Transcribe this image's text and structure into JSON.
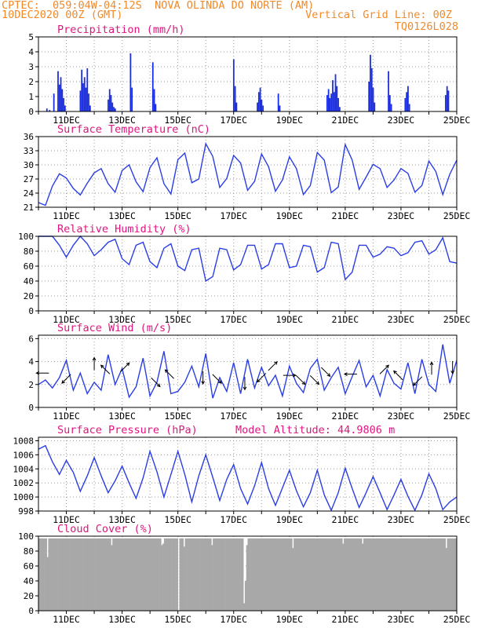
{
  "header": {
    "line1": "CPTEC:  059:04W-04:12S  NOVA OLINDA DO NORTE (AM)",
    "line2_left": "10DEC2020 00Z (GMT)",
    "line2_right": "Vertical Grid Line: 00Z",
    "line3_right": "TQ0126L028"
  },
  "colors": {
    "header": "#f08a2a",
    "panel_title": "#e0157f",
    "line": "#2a3ee6",
    "bar": "#1c2fe0",
    "cloud": "#a8a8a8",
    "grid": "#9a9a9a"
  },
  "x_tick_labels": [
    "11DEC",
    "13DEC",
    "15DEC",
    "17DEC",
    "19DEC",
    "21DEC",
    "23DEC",
    "25DEC"
  ],
  "chart_data": [
    {
      "type": "bar",
      "title": "Precipitation (mm/h)",
      "ylim": [
        0,
        5
      ],
      "yticks": [
        0,
        1,
        2,
        3,
        4,
        5
      ],
      "x_range_days": [
        0,
        15
      ],
      "x": [
        0.3,
        0.4,
        0.55,
        0.7,
        0.75,
        0.8,
        0.85,
        0.9,
        0.95,
        1.5,
        1.55,
        1.6,
        1.65,
        1.7,
        1.75,
        1.8,
        1.85,
        2.5,
        2.55,
        2.6,
        2.65,
        2.7,
        2.75,
        3.3,
        3.35,
        4.1,
        4.15,
        4.2,
        7.0,
        7.05,
        7.1,
        7.85,
        7.9,
        7.95,
        8.0,
        8.05,
        8.6,
        8.65,
        10.35,
        10.4,
        10.45,
        10.5,
        10.55,
        10.6,
        10.65,
        10.7,
        10.75,
        10.8,
        11.85,
        11.9,
        11.95,
        12.0,
        12.05,
        12.55,
        12.6,
        12.65,
        13.15,
        13.2,
        13.25,
        13.3,
        14.6,
        14.65,
        14.7
      ],
      "values": [
        0.2,
        0.1,
        1.2,
        2.7,
        1.8,
        2.3,
        1.5,
        0.9,
        0.4,
        1.4,
        2.8,
        1.9,
        2.3,
        1.6,
        2.9,
        1.2,
        0.4,
        0.8,
        1.5,
        1.1,
        0.6,
        0.3,
        0.2,
        3.9,
        1.6,
        3.3,
        1.5,
        0.5,
        3.5,
        1.7,
        0.6,
        0.6,
        1.3,
        1.6,
        0.8,
        0.4,
        1.2,
        0.4,
        1.1,
        1.5,
        0.9,
        1.2,
        2.1,
        1.3,
        2.5,
        1.7,
        0.9,
        0.3,
        2.0,
        3.8,
        2.9,
        1.6,
        0.6,
        2.7,
        1.1,
        0.5,
        0.9,
        1.3,
        1.7,
        0.5,
        1.1,
        1.7,
        1.4
      ]
    },
    {
      "type": "line",
      "title": "Surface Temperature (nC)",
      "ylim": [
        21,
        36
      ],
      "yticks": [
        21,
        24,
        27,
        30,
        33,
        36
      ],
      "x_range_days": [
        0,
        15
      ],
      "x": [
        0.0,
        0.25,
        0.5,
        0.75,
        1.0,
        1.25,
        1.5,
        1.75,
        2.0,
        2.25,
        2.5,
        2.75,
        3.0,
        3.25,
        3.5,
        3.75,
        4.0,
        4.25,
        4.5,
        4.75,
        5.0,
        5.25,
        5.5,
        5.75,
        6.0,
        6.25,
        6.5,
        6.75,
        7.0,
        7.25,
        7.5,
        7.75,
        8.0,
        8.25,
        8.5,
        8.75,
        9.0,
        9.25,
        9.5,
        9.75,
        10.0,
        10.25,
        10.5,
        10.75,
        11.0,
        11.25,
        11.5,
        11.75,
        12.0,
        12.25,
        12.5,
        12.75,
        13.0,
        13.25,
        13.5,
        13.75,
        14.0,
        14.25,
        14.5,
        14.75,
        15.0
      ],
      "values": [
        22.0,
        21.4,
        25.5,
        28.1,
        27.2,
        25.0,
        23.6,
        26.1,
        28.3,
        29.2,
        26.0,
        24.2,
        28.8,
        30.0,
        26.4,
        24.3,
        29.4,
        31.5,
        26.0,
        23.8,
        31.1,
        32.5,
        26.2,
        27.0,
        34.5,
        31.8,
        25.2,
        27.1,
        32.0,
        30.4,
        24.6,
        26.5,
        32.3,
        29.6,
        24.4,
        26.8,
        31.7,
        29.2,
        23.7,
        25.6,
        32.6,
        31.0,
        24.1,
        25.3,
        34.3,
        31.0,
        24.8,
        27.4,
        30.1,
        29.2,
        25.2,
        26.8,
        29.2,
        28.2,
        24.2,
        25.6,
        30.8,
        28.6,
        23.7,
        28.0,
        31.0
      ]
    },
    {
      "type": "line",
      "title": "Relative Humidity (%)",
      "ylim": [
        0,
        100
      ],
      "yticks": [
        0,
        20,
        40,
        60,
        80,
        100
      ],
      "x_range_days": [
        0,
        15
      ],
      "x": [
        0.0,
        0.25,
        0.5,
        0.75,
        1.0,
        1.25,
        1.5,
        1.75,
        2.0,
        2.25,
        2.5,
        2.75,
        3.0,
        3.25,
        3.5,
        3.75,
        4.0,
        4.25,
        4.5,
        4.75,
        5.0,
        5.25,
        5.5,
        5.75,
        6.0,
        6.25,
        6.5,
        6.75,
        7.0,
        7.25,
        7.5,
        7.75,
        8.0,
        8.25,
        8.5,
        8.75,
        9.0,
        9.25,
        9.5,
        9.75,
        10.0,
        10.25,
        10.5,
        10.75,
        11.0,
        11.25,
        11.5,
        11.75,
        12.0,
        12.25,
        12.5,
        12.75,
        13.0,
        13.25,
        13.5,
        13.75,
        14.0,
        14.25,
        14.5,
        14.75,
        15.0
      ],
      "values": [
        100,
        100,
        100,
        88,
        72,
        88,
        100,
        90,
        74,
        82,
        92,
        96,
        70,
        62,
        88,
        92,
        66,
        58,
        84,
        90,
        60,
        54,
        82,
        84,
        40,
        46,
        84,
        82,
        55,
        62,
        88,
        88,
        56,
        62,
        90,
        90,
        58,
        60,
        88,
        86,
        52,
        58,
        92,
        90,
        42,
        52,
        88,
        88,
        72,
        76,
        86,
        84,
        74,
        78,
        92,
        94,
        76,
        82,
        98,
        66,
        64
      ]
    },
    {
      "type": "line",
      "title": "Surface Wind (m/s)",
      "ylim": [
        0,
        6.3
      ],
      "yticks": [
        0,
        2,
        4,
        6
      ],
      "x_range_days": [
        0,
        15
      ],
      "x": [
        0.0,
        0.25,
        0.5,
        0.75,
        1.0,
        1.25,
        1.5,
        1.75,
        2.0,
        2.25,
        2.5,
        2.75,
        3.0,
        3.25,
        3.5,
        3.75,
        4.0,
        4.25,
        4.5,
        4.75,
        5.0,
        5.25,
        5.5,
        5.75,
        6.0,
        6.25,
        6.5,
        6.75,
        7.0,
        7.25,
        7.5,
        7.75,
        8.0,
        8.25,
        8.5,
        8.75,
        9.0,
        9.25,
        9.5,
        9.75,
        10.0,
        10.25,
        10.5,
        10.75,
        11.0,
        11.25,
        11.5,
        11.75,
        12.0,
        12.25,
        12.5,
        12.75,
        13.0,
        13.25,
        13.5,
        13.75,
        14.0,
        14.25,
        14.5,
        14.75,
        15.0
      ],
      "values": [
        2.0,
        2.4,
        1.7,
        2.6,
        4.1,
        1.5,
        3.0,
        1.2,
        2.2,
        1.5,
        4.6,
        2.0,
        3.4,
        0.9,
        1.8,
        4.3,
        1.0,
        2.2,
        4.9,
        1.2,
        1.4,
        2.2,
        3.6,
        1.8,
        4.7,
        0.8,
        2.6,
        1.4,
        3.9,
        1.2,
        4.2,
        1.7,
        3.5,
        1.9,
        2.8,
        1.0,
        3.6,
        2.1,
        1.3,
        3.4,
        4.2,
        1.5,
        2.6,
        3.5,
        1.2,
        2.7,
        4.1,
        1.8,
        2.8,
        1.0,
        3.3,
        2.1,
        1.6,
        3.9,
        1.2,
        4.2,
        2.0,
        1.4,
        5.5,
        2.1,
        4.1
      ],
      "arrows": [
        {
          "x": 0.15,
          "y": 3.0,
          "dir": "W"
        },
        {
          "x": 1.0,
          "y": 2.5,
          "dir": "SW"
        },
        {
          "x": 2.0,
          "y": 3.8,
          "dir": "N"
        },
        {
          "x": 2.4,
          "y": 3.3,
          "dir": "NW"
        },
        {
          "x": 3.1,
          "y": 3.5,
          "dir": "NE"
        },
        {
          "x": 4.2,
          "y": 2.2,
          "dir": "SE"
        },
        {
          "x": 4.7,
          "y": 2.9,
          "dir": "NW"
        },
        {
          "x": 5.9,
          "y": 2.6,
          "dir": "S"
        },
        {
          "x": 6.4,
          "y": 2.5,
          "dir": "SE"
        },
        {
          "x": 7.4,
          "y": 2.1,
          "dir": "S"
        },
        {
          "x": 8.0,
          "y": 2.6,
          "dir": "SW"
        },
        {
          "x": 8.4,
          "y": 3.6,
          "dir": "NE"
        },
        {
          "x": 9.0,
          "y": 2.8,
          "dir": "E"
        },
        {
          "x": 9.4,
          "y": 2.4,
          "dir": "SE"
        },
        {
          "x": 9.9,
          "y": 2.4,
          "dir": "SE"
        },
        {
          "x": 10.3,
          "y": 3.1,
          "dir": "SE"
        },
        {
          "x": 11.2,
          "y": 2.9,
          "dir": "W"
        },
        {
          "x": 12.4,
          "y": 3.3,
          "dir": "NE"
        },
        {
          "x": 12.9,
          "y": 2.8,
          "dir": "NW"
        },
        {
          "x": 13.6,
          "y": 2.3,
          "dir": "SW"
        },
        {
          "x": 14.1,
          "y": 3.4,
          "dir": "N"
        },
        {
          "x": 14.85,
          "y": 3.5,
          "dir": "S"
        }
      ]
    },
    {
      "type": "line",
      "title": "Surface Pressure (hPa)",
      "annotation": "Model Altitude: 44.9806 m",
      "ylim": [
        998,
        1008.5
      ],
      "yticks": [
        998,
        1000,
        1002,
        1004,
        1006,
        1008
      ],
      "x_range_days": [
        0,
        15
      ],
      "x": [
        0.0,
        0.25,
        0.5,
        0.75,
        1.0,
        1.25,
        1.5,
        1.75,
        2.0,
        2.25,
        2.5,
        2.75,
        3.0,
        3.25,
        3.5,
        3.75,
        4.0,
        4.25,
        4.5,
        4.75,
        5.0,
        5.25,
        5.5,
        5.75,
        6.0,
        6.25,
        6.5,
        6.75,
        7.0,
        7.25,
        7.5,
        7.75,
        8.0,
        8.25,
        8.5,
        8.75,
        9.0,
        9.25,
        9.5,
        9.75,
        10.0,
        10.25,
        10.5,
        10.75,
        11.0,
        11.25,
        11.5,
        11.75,
        12.0,
        12.25,
        12.5,
        12.75,
        13.0,
        13.25,
        13.5,
        13.75,
        14.0,
        14.25,
        14.5,
        14.75,
        15.0
      ],
      "values": [
        1006.8,
        1007.3,
        1005.0,
        1003.2,
        1005.2,
        1003.5,
        1000.8,
        1003.0,
        1005.6,
        1003.0,
        1000.6,
        1002.3,
        1004.4,
        1002.0,
        999.8,
        1002.7,
        1006.5,
        1003.6,
        1000.0,
        1003.2,
        1006.5,
        1003.2,
        999.3,
        1003.0,
        1006.0,
        1002.8,
        999.5,
        1002.5,
        1004.6,
        1001.2,
        999.0,
        1001.6,
        1004.9,
        1001.2,
        998.8,
        1001.3,
        1003.8,
        1000.9,
        998.6,
        1000.6,
        1003.8,
        1000.3,
        998.1,
        1000.6,
        1004.1,
        1001.2,
        998.5,
        1000.6,
        1002.9,
        1000.6,
        998.2,
        1000.3,
        1002.5,
        1000.1,
        998.1,
        1000.3,
        1003.3,
        1001.2,
        998.2,
        999.3,
        1000.0
      ]
    },
    {
      "type": "bar",
      "title": "Cloud Cover (%)",
      "ylim": [
        0,
        100
      ],
      "yticks": [
        0,
        20,
        40,
        60,
        80,
        100
      ],
      "x_range_days": [
        0,
        15
      ],
      "default_value": 97,
      "x": [
        0.12,
        0.3,
        2.6,
        4.4,
        4.45,
        5.0,
        5.2,
        6.2,
        7.35,
        7.4,
        7.45,
        9.1,
        10.9,
        11.6,
        14.6
      ],
      "values": [
        92,
        72,
        88,
        88,
        90,
        0,
        86,
        88,
        10,
        40,
        88,
        84,
        90,
        90,
        84
      ]
    }
  ]
}
